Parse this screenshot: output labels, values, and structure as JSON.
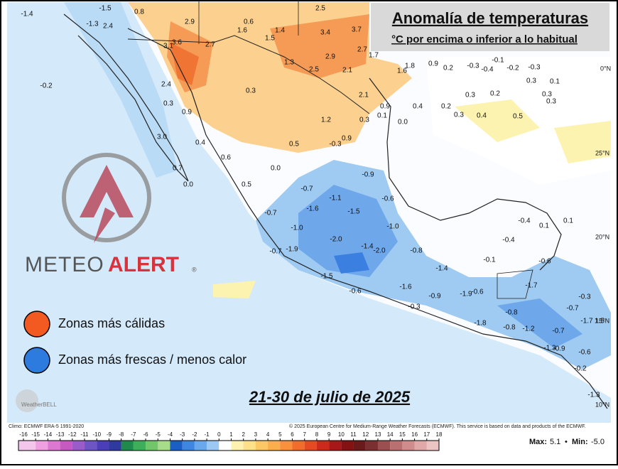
{
  "header": {
    "title": "Anomalía de temperaturas",
    "subtitle": "°C por encima o inferior a lo habitual"
  },
  "logo": {
    "part1": "METEO",
    "part2": "ALERT",
    "mark": "®"
  },
  "legend": {
    "items": [
      {
        "label": "Zonas más cálidas",
        "color": "#f25a22"
      },
      {
        "label": "Zonas más frescas / menos calor",
        "color": "#2e7be0"
      }
    ]
  },
  "date": "21-30 de julio de 2025",
  "provider": "WeatherBELL",
  "latitudes": [
    "0°N",
    "25°N",
    "20°N",
    "15°N",
    "10°N"
  ],
  "map": {
    "labels": [
      "-1.4",
      "-1.5",
      "0.8",
      "2.9",
      "0.6",
      "2.5",
      "1.6",
      "1.4",
      "3.4",
      "3.7",
      "-1.3",
      "2.4",
      "3.6",
      "3.1",
      "2.7",
      "1.5",
      "2.7",
      "1.7",
      "2.9",
      "1.3",
      "2.5",
      "2.1",
      "1.8",
      "1.6",
      "0.9",
      "0.2",
      "-0.3",
      "-0.1",
      "-0.4",
      "-0.2",
      "-0.3",
      "-0.2",
      "2.4",
      "0.3",
      "2.1",
      "0.3",
      "0.2",
      "0.3",
      "0.1",
      "0.3",
      "0.3",
      "0.3",
      "0.9",
      "0.9",
      "0.4",
      "0.2",
      "0.3",
      "0.4",
      "0.5",
      "1.2",
      "0.3",
      "0.1",
      "0.0",
      "3.0",
      "0.9",
      "0.5",
      "-0.3",
      "0.4",
      "0.6",
      "0.7",
      "0.0",
      "-0.9",
      "0.0",
      "0.5",
      "-0.7",
      "-1.1",
      "-0.6",
      "-1.6",
      "-0.7",
      "-1.5",
      "-1.0",
      "-1.0",
      "-2.0",
      "-1.4",
      "-2.0",
      "-0.7",
      "-1.9",
      "-0.8",
      "-1.5",
      "-1.4",
      "-0.6",
      "-1.6",
      "-0.9",
      "-1.9",
      "-0.6",
      "-0.3",
      "-0.4",
      "0.1",
      "0.1",
      "-0.4",
      "-0.1",
      "-0.6",
      "-1.7",
      "-0.8",
      "-0.8",
      "-1.8",
      "-1.2",
      "-0.7",
      "-0.7",
      "-0.3",
      "-1.7",
      "1.5",
      "-1.3",
      "-0.9",
      "-0.6",
      "-0.2",
      "-1.3"
    ]
  },
  "footer": {
    "climo": "Climo: ECMWF ERA-5 1991-2020",
    "copyright": "© 2025 European Centre for Medium-Range Weather Forecasts (ECMWF). This service is based on data and products of the ECMWF.",
    "max_label": "Max:",
    "max_value": "5.1",
    "separator": "•",
    "min_label": "Min:",
    "min_value": "-5.0"
  },
  "colorbar": {
    "ticks": [
      -16,
      -15,
      -14,
      -13,
      -12,
      -11,
      -10,
      -9,
      -8,
      -7,
      -6,
      -5,
      -4,
      -3,
      -2,
      -1,
      0,
      1,
      2,
      3,
      4,
      5,
      6,
      7,
      8,
      9,
      10,
      11,
      12,
      13,
      14,
      15,
      16,
      17,
      18
    ],
    "colors": [
      "#f5c6ec",
      "#eea0e0",
      "#dd78d0",
      "#c55ac0",
      "#9a5cc8",
      "#6e55c4",
      "#4a3fb8",
      "#2f3a9e",
      "#1f8a4c",
      "#3fae5a",
      "#72c66a",
      "#a6dc8a",
      "#1c5fc4",
      "#3f86e0",
      "#6aa8ec",
      "#9cc8f4",
      "#ffffff",
      "#fff2b0",
      "#fde08a",
      "#fcc865",
      "#fbae4c",
      "#f8903c",
      "#f26d2c",
      "#e54a22",
      "#cc2a1c",
      "#a81818",
      "#841212",
      "#6a1a1a",
      "#7a3030",
      "#9a5050",
      "#b87070",
      "#cf8c8c",
      "#e0a8a8",
      "#ecc4c4"
    ]
  }
}
